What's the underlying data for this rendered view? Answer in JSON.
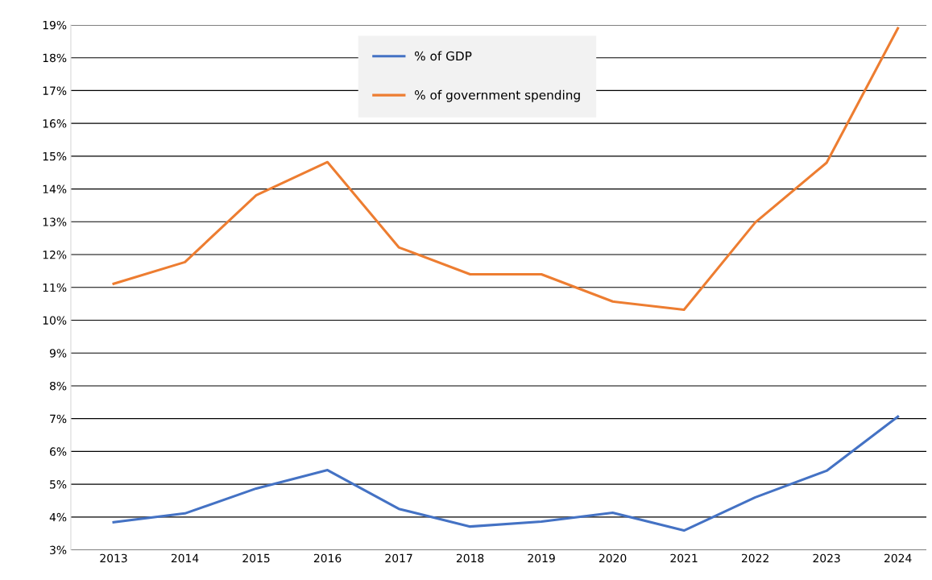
{
  "chart_data": {
    "type": "line",
    "categories": [
      "2013",
      "2014",
      "2015",
      "2016",
      "2017",
      "2018",
      "2019",
      "2020",
      "2021",
      "2022",
      "2023",
      "2024"
    ],
    "series": [
      {
        "name": "% of GDP",
        "color": "#4472c4",
        "values": [
          3.84,
          4.11,
          4.87,
          5.43,
          4.25,
          3.71,
          3.86,
          4.13,
          3.59,
          4.6,
          5.41,
          7.06
        ]
      },
      {
        "name": "% of government spending",
        "color": "#ed7d31",
        "values": [
          11.11,
          11.77,
          13.81,
          14.82,
          12.22,
          11.4,
          11.4,
          10.57,
          10.32,
          12.98,
          14.8,
          18.9
        ]
      }
    ],
    "ylim": [
      3,
      19
    ],
    "yticks": [
      {
        "value": 3,
        "label": "3%"
      },
      {
        "value": 4,
        "label": "4%"
      },
      {
        "value": 5,
        "label": "5%"
      },
      {
        "value": 6,
        "label": "6%"
      },
      {
        "value": 7,
        "label": "7%"
      },
      {
        "value": 8,
        "label": "8%"
      },
      {
        "value": 9,
        "label": "9%"
      },
      {
        "value": 10,
        "label": "10%"
      },
      {
        "value": 11,
        "label": "11%"
      },
      {
        "value": 12,
        "label": "12%"
      },
      {
        "value": 13,
        "label": "13%"
      },
      {
        "value": 14,
        "label": "14%"
      },
      {
        "value": 15,
        "label": "15%"
      },
      {
        "value": 16,
        "label": "16%"
      },
      {
        "value": 17,
        "label": "17%"
      },
      {
        "value": 18,
        "label": "18%"
      },
      {
        "value": 19,
        "label": "19%"
      }
    ],
    "grid": "y",
    "legend": "top"
  }
}
